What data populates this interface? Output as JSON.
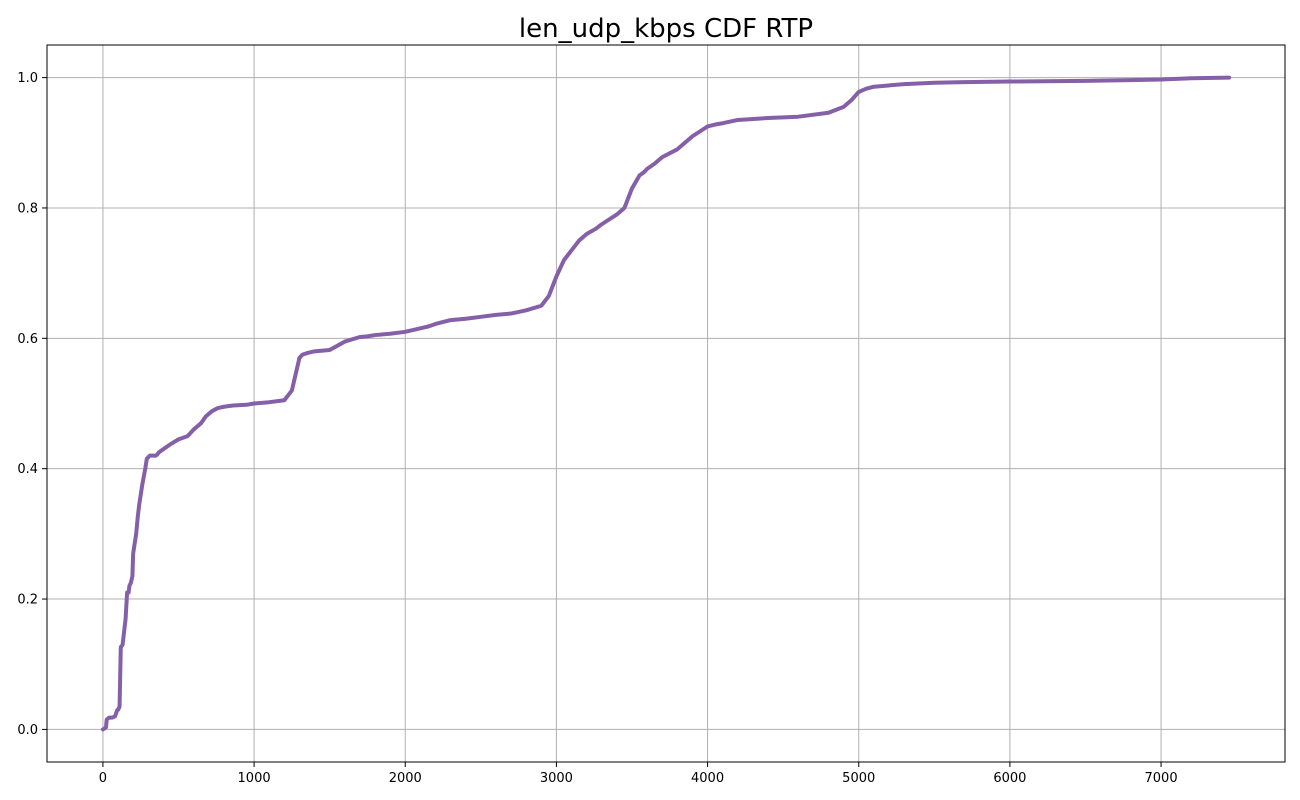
{
  "chart_data": {
    "type": "line",
    "title": "len_udp_kbps CDF RTP",
    "xlabel": "",
    "ylabel": "",
    "xlim": [
      -370,
      7820
    ],
    "ylim": [
      -0.05,
      1.05
    ],
    "x_ticks": [
      0,
      1000,
      2000,
      3000,
      4000,
      5000,
      6000,
      7000
    ],
    "y_ticks": [
      0.0,
      0.2,
      0.4,
      0.6,
      0.8,
      1.0
    ],
    "x_tick_labels": [
      "0",
      "1000",
      "2000",
      "3000",
      "4000",
      "5000",
      "6000",
      "7000"
    ],
    "y_tick_labels": [
      "0.0",
      "0.2",
      "0.4",
      "0.6",
      "0.8",
      "1.0"
    ],
    "grid": true,
    "legend": "none",
    "series": [
      {
        "color": "#8560a8",
        "x": [
          0,
          20,
          25,
          40,
          60,
          80,
          95,
          100,
          110,
          115,
          118,
          120,
          125,
          130,
          145,
          150,
          160,
          170,
          175,
          185,
          195,
          200,
          220,
          230,
          240,
          260,
          280,
          290,
          310,
          330,
          350,
          360,
          370,
          400,
          450,
          500,
          560,
          600,
          650,
          680,
          720,
          760,
          800,
          860,
          950,
          1000,
          1100,
          1200,
          1250,
          1280,
          1300,
          1320,
          1360,
          1400,
          1500,
          1600,
          1700,
          1750,
          1800,
          1900,
          2000,
          2150,
          2200,
          2300,
          2400,
          2500,
          2600,
          2700,
          2800,
          2900,
          2950,
          3000,
          3050,
          3100,
          3150,
          3200,
          3260,
          3300,
          3400,
          3450,
          3500,
          3550,
          3580,
          3600,
          3650,
          3700,
          3800,
          3900,
          4000,
          4050,
          4100,
          4200,
          4400,
          4600,
          4800,
          4900,
          4950,
          5000,
          5050,
          5100,
          5300,
          5500,
          5700,
          6000,
          6500,
          7000,
          7200,
          7450
        ],
        "y": [
          0.0,
          0.003,
          0.015,
          0.018,
          0.018,
          0.02,
          0.03,
          0.03,
          0.035,
          0.09,
          0.125,
          0.127,
          0.128,
          0.13,
          0.16,
          0.17,
          0.21,
          0.21,
          0.22,
          0.225,
          0.235,
          0.27,
          0.3,
          0.325,
          0.345,
          0.375,
          0.4,
          0.415,
          0.42,
          0.42,
          0.42,
          0.422,
          0.425,
          0.43,
          0.438,
          0.445,
          0.45,
          0.46,
          0.47,
          0.48,
          0.488,
          0.493,
          0.495,
          0.497,
          0.498,
          0.5,
          0.502,
          0.505,
          0.52,
          0.55,
          0.57,
          0.575,
          0.578,
          0.58,
          0.582,
          0.595,
          0.602,
          0.603,
          0.605,
          0.607,
          0.61,
          0.618,
          0.622,
          0.628,
          0.63,
          0.633,
          0.636,
          0.638,
          0.643,
          0.65,
          0.665,
          0.695,
          0.72,
          0.735,
          0.75,
          0.76,
          0.768,
          0.775,
          0.79,
          0.8,
          0.83,
          0.85,
          0.855,
          0.86,
          0.868,
          0.878,
          0.89,
          0.91,
          0.925,
          0.928,
          0.93,
          0.935,
          0.938,
          0.94,
          0.946,
          0.955,
          0.965,
          0.978,
          0.983,
          0.986,
          0.99,
          0.992,
          0.993,
          0.994,
          0.995,
          0.997,
          0.999,
          1.0
        ]
      }
    ]
  }
}
